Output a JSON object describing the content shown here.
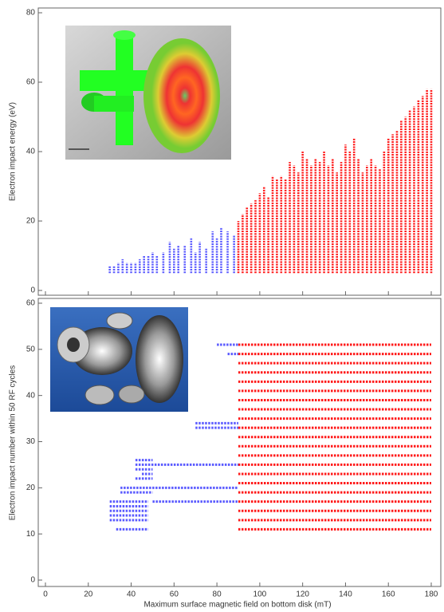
{
  "chart_data": [
    {
      "type": "scatter",
      "y_label": "Electron impact energy (eV)",
      "xlim": [
        0,
        180
      ],
      "xticks": [
        0,
        20,
        40,
        60,
        80,
        100,
        120,
        140,
        160,
        180
      ],
      "ylim": [
        0,
        80
      ],
      "yticks": [
        0,
        20,
        40,
        60,
        80
      ],
      "series": [
        {
          "color": "#5a5aff",
          "x": [
            30,
            32,
            34,
            36,
            38,
            40,
            42,
            44,
            46,
            48,
            50,
            52,
            55,
            58,
            60,
            62,
            65,
            68,
            70,
            72,
            75,
            78,
            80,
            82,
            85,
            88
          ],
          "low": [
            5,
            5,
            5,
            5,
            5,
            5,
            5,
            5,
            5,
            5,
            5,
            5,
            5,
            5,
            5,
            5,
            5,
            5,
            5,
            5,
            5,
            5,
            5,
            5,
            5,
            5
          ],
          "high": [
            7,
            7,
            8,
            9,
            8,
            8,
            8,
            9,
            10,
            10,
            11,
            10,
            11,
            14,
            12,
            13,
            13,
            15,
            11,
            14,
            12,
            17,
            15,
            18,
            17,
            16
          ]
        },
        {
          "color": "#ff1a1a",
          "x": [
            90,
            92,
            94,
            96,
            98,
            100,
            102,
            104,
            106,
            108,
            110,
            112,
            114,
            116,
            118,
            120,
            122,
            124,
            126,
            128,
            130,
            132,
            134,
            136,
            138,
            140,
            142,
            144,
            146,
            148,
            150,
            152,
            154,
            156,
            158,
            160,
            162,
            164,
            166,
            168,
            170,
            172,
            174,
            176,
            178,
            180
          ],
          "low": [
            5,
            5,
            5,
            5,
            5,
            5,
            5,
            5,
            5,
            5,
            5,
            5,
            5,
            5,
            5,
            5,
            5,
            5,
            5,
            5,
            5,
            5,
            5,
            5,
            5,
            5,
            5,
            5,
            5,
            5,
            5,
            5,
            5,
            5,
            5,
            5,
            5,
            5,
            5,
            5,
            5,
            5,
            5,
            5,
            5,
            5
          ],
          "high": [
            20,
            22,
            24,
            25,
            26,
            28,
            30,
            27,
            33,
            32,
            33,
            32,
            37,
            36,
            34,
            40,
            38,
            36,
            38,
            37,
            40,
            36,
            38,
            34,
            37,
            42,
            40,
            44,
            38,
            34,
            36,
            38,
            36,
            35,
            40,
            44,
            45,
            46,
            49,
            50,
            52,
            53,
            55,
            56,
            58,
            58
          ]
        }
      ]
    },
    {
      "type": "scatter",
      "x_label": "Maximum surface magnetic field on bottom disk (mT)",
      "y_label": "Electron impact number within 50 RF cycles",
      "xlim": [
        0,
        180
      ],
      "xticks": [
        0,
        20,
        40,
        60,
        80,
        100,
        120,
        140,
        160,
        180
      ],
      "ylim": [
        0,
        60
      ],
      "yticks": [
        0,
        10,
        20,
        30,
        40,
        50,
        60
      ],
      "series": [
        {
          "color": "#5a5aff",
          "y": [
            11,
            13,
            14,
            15,
            16,
            17,
            17,
            19,
            20,
            22,
            23,
            24,
            25,
            26,
            33,
            34,
            49,
            51
          ],
          "x_start": [
            33,
            30,
            30,
            30,
            30,
            30,
            50,
            35,
            35,
            42,
            45,
            42,
            42,
            42,
            70,
            70,
            85,
            80
          ],
          "x_end": [
            48,
            48,
            48,
            48,
            48,
            48,
            90,
            50,
            90,
            50,
            50,
            50,
            90,
            50,
            90,
            90,
            90,
            90
          ]
        },
        {
          "color": "#ff1a1a",
          "y": [
            11,
            13,
            15,
            17,
            19,
            21,
            23,
            25,
            27,
            29,
            31,
            33,
            35,
            37,
            39,
            41,
            43,
            45,
            47,
            49,
            51
          ],
          "x_start": [
            90,
            90,
            90,
            90,
            90,
            90,
            90,
            90,
            90,
            90,
            90,
            90,
            90,
            90,
            90,
            90,
            90,
            90,
            90,
            90,
            90
          ],
          "x_end": [
            180,
            180,
            180,
            180,
            180,
            180,
            180,
            180,
            180,
            180,
            180,
            180,
            180,
            180,
            180,
            180,
            180,
            180,
            180,
            180,
            180
          ]
        }
      ]
    }
  ]
}
